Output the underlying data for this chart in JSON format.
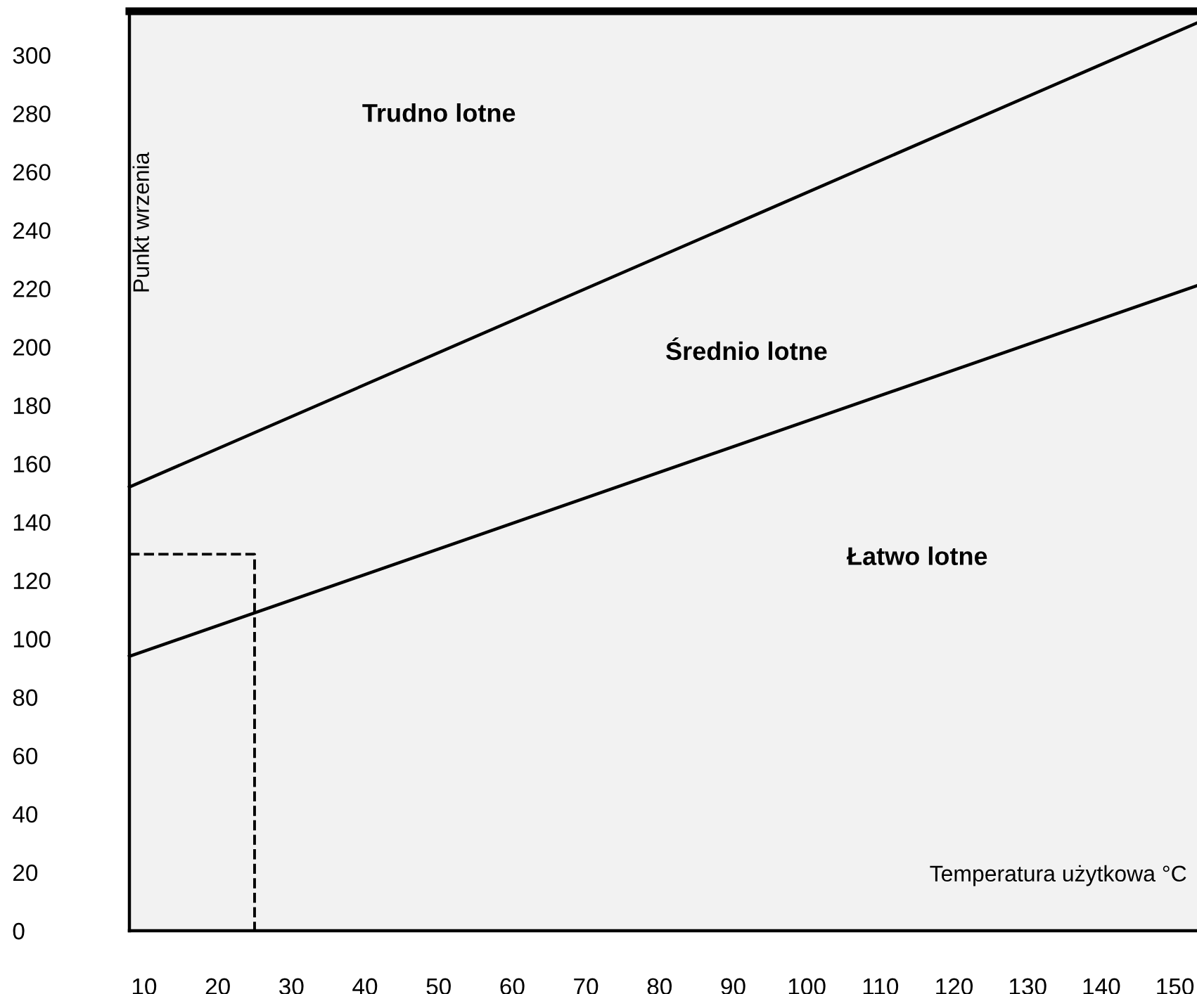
{
  "chart_data": {
    "type": "line",
    "xlabel": "Temperatura użytkowa °C",
    "ylabel": "Punkt wrzenia",
    "xlim": [
      8,
      153
    ],
    "ylim": [
      0,
      315
    ],
    "xticks": [
      10,
      20,
      30,
      40,
      50,
      60,
      70,
      80,
      90,
      100,
      110,
      120,
      130,
      140,
      150
    ],
    "yticks": [
      0,
      20,
      40,
      60,
      80,
      100,
      120,
      140,
      160,
      180,
      200,
      220,
      240,
      260,
      280,
      300
    ],
    "series": [
      {
        "color": "#000000",
        "x": [
          8,
          153
        ],
        "values": [
          152,
          311
        ]
      },
      {
        "color": "#000000",
        "x": [
          8,
          153
        ],
        "values": [
          94,
          221
        ]
      },
      {
        "color": "#000000",
        "x": [
          8,
          25,
          25
        ],
        "values": [
          129,
          129,
          0
        ],
        "line_style": "dashed"
      }
    ],
    "annotations": [
      "Trudno lotne",
      "Średnio lotne",
      "Łatwo lotne"
    ]
  }
}
